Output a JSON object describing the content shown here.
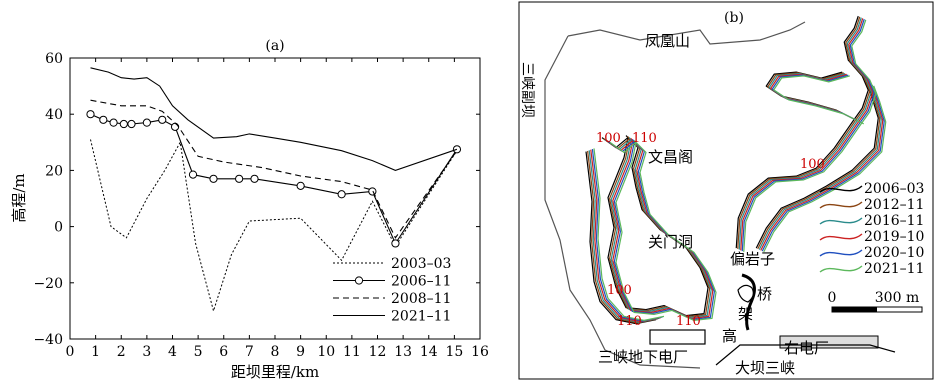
{
  "chart_data": [
    {
      "type": "line",
      "title": "(a)",
      "xlabel": "距坝里程/km",
      "ylabel": "高程/m",
      "xlim": [
        0,
        16
      ],
      "ylim": [
        -40,
        60
      ],
      "xticks": [
        "0",
        "1",
        "2",
        "3",
        "4",
        "5",
        "6",
        "7",
        "8",
        "9",
        "10",
        "11",
        "12",
        "13",
        "14",
        "15",
        "16"
      ],
      "yticks": [
        "−40",
        "−20",
        "0",
        "20",
        "40",
        "60"
      ],
      "legend_position": "bottom-right",
      "series": [
        {
          "name": "2003–03",
          "style": "dotted",
          "points": [
            [
              0.8,
              31
            ],
            [
              1.6,
              0
            ],
            [
              2.2,
              -4
            ],
            [
              3.0,
              10
            ],
            [
              3.7,
              20
            ],
            [
              4.3,
              30
            ],
            [
              4.9,
              -6
            ],
            [
              5.6,
              -30
            ],
            [
              6.3,
              -10
            ],
            [
              7.0,
              2
            ],
            [
              9.0,
              3
            ],
            [
              10.6,
              -12
            ],
            [
              11.8,
              9
            ],
            [
              12.7,
              -7
            ],
            [
              15.1,
              27
            ]
          ]
        },
        {
          "name": "2006–11",
          "style": "solid-circle",
          "points": [
            [
              0.8,
              40
            ],
            [
              1.3,
              38
            ],
            [
              1.7,
              37
            ],
            [
              2.1,
              36.5
            ],
            [
              2.4,
              36.5
            ],
            [
              3.0,
              37
            ],
            [
              3.6,
              38
            ],
            [
              4.1,
              35.5
            ],
            [
              4.8,
              18.5
            ],
            [
              5.6,
              17
            ],
            [
              6.6,
              17
            ],
            [
              7.2,
              17
            ],
            [
              9.0,
              14.5
            ],
            [
              10.6,
              11.5
            ],
            [
              11.8,
              12.5
            ],
            [
              12.7,
              -6
            ],
            [
              15.1,
              27.5
            ]
          ]
        },
        {
          "name": "2008–11",
          "style": "dashed",
          "points": [
            [
              0.8,
              45
            ],
            [
              2.0,
              43
            ],
            [
              3.0,
              43
            ],
            [
              3.6,
              41
            ],
            [
              4.2,
              36
            ],
            [
              5.0,
              25
            ],
            [
              6.0,
              23
            ],
            [
              7.5,
              21
            ],
            [
              9.0,
              18
            ],
            [
              10.6,
              16
            ],
            [
              11.8,
              13
            ],
            [
              12.7,
              -4
            ],
            [
              15.1,
              27
            ]
          ]
        },
        {
          "name": "2021–11",
          "style": "solid",
          "points": [
            [
              0.8,
              56.5
            ],
            [
              1.5,
              55
            ],
            [
              2.0,
              53
            ],
            [
              2.5,
              52.5
            ],
            [
              3.0,
              53
            ],
            [
              3.5,
              50
            ],
            [
              4.0,
              43
            ],
            [
              4.6,
              38
            ],
            [
              5.6,
              31.5
            ],
            [
              6.5,
              32
            ],
            [
              7.0,
              33
            ],
            [
              8.0,
              31.5
            ],
            [
              9.0,
              30
            ],
            [
              10.6,
              27
            ],
            [
              11.8,
              23.5
            ],
            [
              12.7,
              20
            ],
            [
              15.1,
              27.5
            ]
          ]
        }
      ]
    },
    {
      "type": "map",
      "title": "(b)",
      "labels": [
        "凤凰山",
        "三峡副坝",
        "文昌阁",
        "关门洞",
        "偏岩子",
        "桥",
        "架",
        "高",
        "右电厂",
        "三峡地下电厂",
        "大坝三峡"
      ],
      "depth_labels": [
        "100",
        "110",
        "100",
        "100",
        "110",
        "110"
      ],
      "legend": [
        {
          "name": "2006–03",
          "color": "#000000"
        },
        {
          "name": "2012–11",
          "color": "#8b4513"
        },
        {
          "name": "2016–11",
          "color": "#2a8b8b"
        },
        {
          "name": "2019–10",
          "color": "#cc2222"
        },
        {
          "name": "2020–10",
          "color": "#1f4fbf"
        },
        {
          "name": "2021–11",
          "color": "#5cb85c"
        }
      ],
      "scale_bar": {
        "start": "0",
        "end": "300 m"
      }
    }
  ]
}
